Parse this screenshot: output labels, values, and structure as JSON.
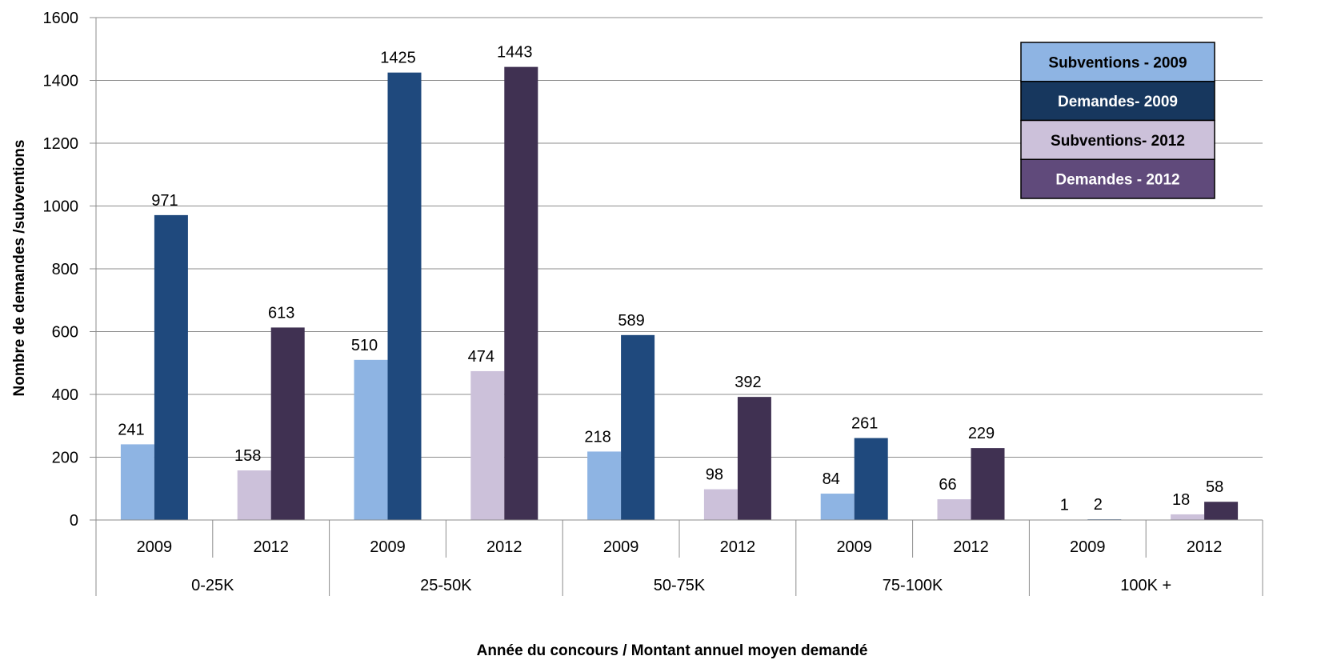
{
  "chart_data": {
    "type": "bar",
    "xlabel": "Année du concours / Montant annuel moyen demandé",
    "ylabel": "Nombre de demandes /subventions",
    "ylim": [
      0,
      1600
    ],
    "yticks": [
      0,
      200,
      400,
      600,
      800,
      1000,
      1200,
      1400,
      1600
    ],
    "grid": true,
    "legend_position": "top-right",
    "groups": [
      {
        "label": "0-25K",
        "years": [
          {
            "year": "2009",
            "subventions": 241,
            "demandes": 971
          },
          {
            "year": "2012",
            "subventions": 158,
            "demandes": 613
          }
        ]
      },
      {
        "label": "25-50K",
        "years": [
          {
            "year": "2009",
            "subventions": 510,
            "demandes": 1425
          },
          {
            "year": "2012",
            "subventions": 474,
            "demandes": 1443
          }
        ]
      },
      {
        "label": "50-75K",
        "years": [
          {
            "year": "2009",
            "subventions": 218,
            "demandes": 589
          },
          {
            "year": "2012",
            "subventions": 98,
            "demandes": 392
          }
        ]
      },
      {
        "label": "75-100K",
        "years": [
          {
            "year": "2009",
            "subventions": 84,
            "demandes": 261
          },
          {
            "year": "2012",
            "subventions": 66,
            "demandes": 229
          }
        ]
      },
      {
        "label": "100K +",
        "years": [
          {
            "year": "2009",
            "subventions": 1,
            "demandes": 2
          },
          {
            "year": "2012",
            "subventions": 18,
            "demandes": 58
          }
        ]
      }
    ],
    "series": [
      {
        "name": "Subventions - 2009",
        "key": "subventions",
        "year": "2009",
        "color": "#8EB4E3"
      },
      {
        "name": "Demandes- 2009",
        "key": "demandes",
        "year": "2009",
        "color": "#1F497D"
      },
      {
        "name": "Subventions-  2012",
        "key": "subventions",
        "year": "2012",
        "color": "#CCC1DA"
      },
      {
        "name": "Demandes - 2012",
        "key": "demandes",
        "year": "2012",
        "color": "#403152"
      }
    ],
    "legend": [
      {
        "label": "Subventions - 2009",
        "bg": "#8EB4E3",
        "fg": "#000000"
      },
      {
        "label": "Demandes- 2009",
        "bg": "#17375E",
        "fg": "#FFFFFF"
      },
      {
        "label": "Subventions-  2012",
        "bg": "#CCC1DA",
        "fg": "#000000"
      },
      {
        "label": "Demandes - 2012",
        "bg": "#604A7B",
        "fg": "#FFFFFF"
      }
    ]
  }
}
